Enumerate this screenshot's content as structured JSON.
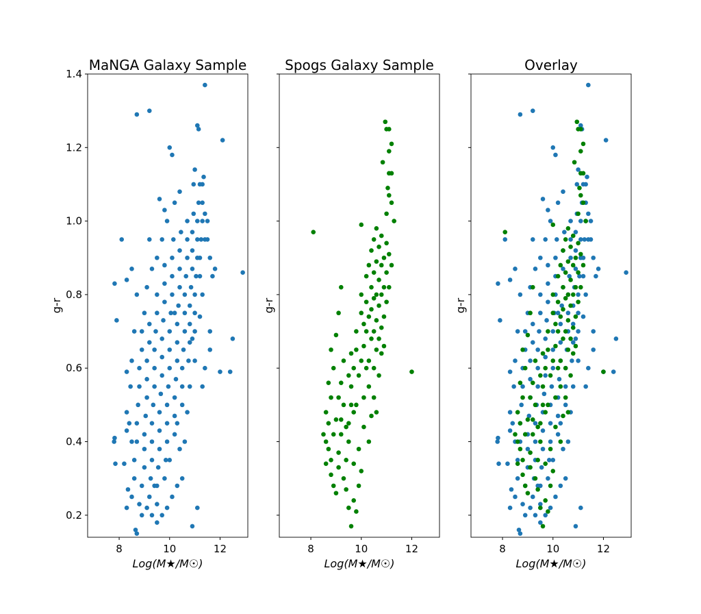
{
  "chart_data": [
    {
      "type": "scatter",
      "title": "MaNGA Galaxy Sample",
      "xlabel": "Log(M★/M☉)",
      "ylabel": "g-r",
      "xlim": [
        6.75,
        13.1
      ],
      "ylim": [
        0.14,
        1.4
      ],
      "xticks": [
        "8",
        "10",
        "12"
      ],
      "yticks": [
        "0.2",
        "0.4",
        "0.6",
        "0.8",
        "1.0",
        "1.2",
        "1.4"
      ],
      "show_ytick_labels": true,
      "series": [
        "manga"
      ]
    },
    {
      "type": "scatter",
      "title": "Spogs Galaxy Sample",
      "xlabel": "Log(M★/M☉)",
      "ylabel": "g-r",
      "xlim": [
        6.75,
        13.1
      ],
      "ylim": [
        0.14,
        1.4
      ],
      "xticks": [
        "8",
        "10",
        "12"
      ],
      "yticks": [
        "0.2",
        "0.4",
        "0.6",
        "0.8",
        "1.0",
        "1.2",
        "1.4"
      ],
      "show_ytick_labels": false,
      "series": [
        "spogs"
      ]
    },
    {
      "type": "scatter",
      "title": "Overlay",
      "xlabel": "Log(M★/M☉)",
      "ylabel": "g-r",
      "xlim": [
        6.75,
        13.1
      ],
      "ylim": [
        0.14,
        1.4
      ],
      "xticks": [
        "8",
        "10",
        "12"
      ],
      "yticks": [
        "0.2",
        "0.4",
        "0.6",
        "0.8",
        "1.0",
        "1.2",
        "1.4"
      ],
      "show_ytick_labels": false,
      "series": [
        "manga",
        "spogs"
      ]
    }
  ],
  "series_data": {
    "manga": {
      "color": "#1f77b4",
      "points": [
        [
          7.8,
          0.4
        ],
        [
          7.82,
          0.41
        ],
        [
          7.82,
          0.83
        ],
        [
          7.9,
          0.73
        ],
        [
          7.85,
          0.34
        ],
        [
          8.1,
          0.95
        ],
        [
          8.3,
          0.84
        ],
        [
          8.7,
          1.29
        ],
        [
          9.2,
          1.3
        ],
        [
          10.0,
          1.2
        ],
        [
          10.1,
          1.18
        ],
        [
          11.4,
          1.37
        ],
        [
          11.1,
          1.26
        ],
        [
          11.15,
          1.25
        ],
        [
          12.1,
          1.22
        ],
        [
          12.9,
          0.86
        ],
        [
          12.5,
          0.68
        ],
        [
          12.4,
          0.59
        ],
        [
          12.0,
          0.59
        ],
        [
          10.9,
          0.17
        ],
        [
          11.1,
          0.22
        ],
        [
          8.7,
          0.15
        ],
        [
          8.65,
          0.16
        ],
        [
          9.5,
          0.18
        ],
        [
          8.3,
          0.59
        ],
        [
          8.3,
          0.48
        ],
        [
          8.35,
          0.27
        ],
        [
          8.3,
          0.22
        ],
        [
          8.2,
          0.34
        ],
        [
          8.3,
          0.43
        ],
        [
          8.5,
          0.25
        ],
        [
          8.6,
          0.3
        ],
        [
          8.6,
          0.35
        ],
        [
          8.7,
          0.4
        ],
        [
          8.7,
          0.45
        ],
        [
          8.75,
          0.5
        ],
        [
          8.8,
          0.55
        ],
        [
          8.8,
          0.6
        ],
        [
          8.9,
          0.65
        ],
        [
          8.9,
          0.7
        ],
        [
          8.9,
          0.28
        ],
        [
          9.0,
          0.33
        ],
        [
          9.0,
          0.38
        ],
        [
          9.0,
          0.42
        ],
        [
          9.05,
          0.47
        ],
        [
          9.1,
          0.52
        ],
        [
          9.1,
          0.57
        ],
        [
          9.1,
          0.62
        ],
        [
          9.2,
          0.67
        ],
        [
          9.2,
          0.72
        ],
        [
          9.2,
          0.25
        ],
        [
          9.25,
          0.3
        ],
        [
          9.3,
          0.35
        ],
        [
          9.3,
          0.4
        ],
        [
          9.3,
          0.45
        ],
        [
          9.35,
          0.5
        ],
        [
          9.4,
          0.55
        ],
        [
          9.4,
          0.6
        ],
        [
          9.4,
          0.65
        ],
        [
          9.45,
          0.7
        ],
        [
          9.5,
          0.75
        ],
        [
          9.5,
          0.8
        ],
        [
          9.5,
          0.28
        ],
        [
          9.55,
          0.33
        ],
        [
          9.6,
          0.38
        ],
        [
          9.6,
          0.43
        ],
        [
          9.6,
          0.48
        ],
        [
          9.65,
          0.53
        ],
        [
          9.7,
          0.58
        ],
        [
          9.7,
          0.63
        ],
        [
          9.7,
          0.68
        ],
        [
          9.75,
          0.73
        ],
        [
          9.8,
          0.78
        ],
        [
          9.8,
          0.83
        ],
        [
          9.8,
          0.88
        ],
        [
          9.85,
          0.35
        ],
        [
          9.9,
          0.4
        ],
        [
          9.9,
          0.45
        ],
        [
          9.9,
          0.5
        ],
        [
          9.95,
          0.55
        ],
        [
          10.0,
          0.6
        ],
        [
          10.0,
          0.65
        ],
        [
          10.0,
          0.7
        ],
        [
          10.05,
          0.75
        ],
        [
          10.1,
          0.8
        ],
        [
          10.1,
          0.85
        ],
        [
          10.1,
          0.9
        ],
        [
          10.15,
          0.95
        ],
        [
          10.2,
          0.42
        ],
        [
          10.2,
          0.47
        ],
        [
          10.2,
          0.52
        ],
        [
          10.25,
          0.57
        ],
        [
          10.3,
          0.62
        ],
        [
          10.3,
          0.67
        ],
        [
          10.3,
          0.72
        ],
        [
          10.35,
          0.77
        ],
        [
          10.4,
          0.82
        ],
        [
          10.4,
          0.87
        ],
        [
          10.4,
          0.92
        ],
        [
          10.45,
          0.97
        ],
        [
          10.5,
          0.5
        ],
        [
          10.5,
          0.55
        ],
        [
          10.5,
          0.6
        ],
        [
          10.55,
          0.65
        ],
        [
          10.6,
          0.7
        ],
        [
          10.6,
          0.75
        ],
        [
          10.6,
          0.8
        ],
        [
          10.65,
          0.85
        ],
        [
          10.7,
          0.9
        ],
        [
          10.7,
          0.95
        ],
        [
          10.7,
          1.0
        ],
        [
          10.75,
          0.62
        ],
        [
          10.8,
          0.67
        ],
        [
          10.8,
          0.72
        ],
        [
          10.8,
          0.77
        ],
        [
          10.85,
          0.82
        ],
        [
          10.9,
          0.87
        ],
        [
          10.9,
          0.92
        ],
        [
          10.9,
          0.97
        ],
        [
          10.95,
          1.02
        ],
        [
          11.0,
          0.7
        ],
        [
          11.0,
          0.75
        ],
        [
          11.0,
          0.8
        ],
        [
          11.05,
          0.85
        ],
        [
          11.1,
          0.9
        ],
        [
          11.1,
          0.95
        ],
        [
          11.1,
          1.0
        ],
        [
          11.15,
          1.05
        ],
        [
          11.2,
          1.1
        ],
        [
          11.2,
          0.85
        ],
        [
          11.2,
          0.9
        ],
        [
          11.25,
          0.95
        ],
        [
          11.3,
          1.0
        ],
        [
          11.3,
          1.05
        ],
        [
          11.3,
          1.1
        ],
        [
          11.35,
          1.12
        ],
        [
          11.4,
          0.95
        ],
        [
          11.4,
          1.02
        ],
        [
          11.0,
          1.14
        ],
        [
          10.95,
          1.1
        ],
        [
          11.5,
          1.0
        ],
        [
          11.5,
          0.95
        ],
        [
          11.6,
          0.9
        ],
        [
          11.7,
          0.85
        ],
        [
          11.8,
          0.87
        ],
        [
          11.6,
          0.7
        ],
        [
          11.4,
          0.6
        ],
        [
          11.6,
          0.65
        ],
        [
          11.3,
          0.55
        ],
        [
          10.6,
          0.4
        ],
        [
          10.5,
          0.3
        ],
        [
          10.3,
          0.28
        ],
        [
          10.1,
          0.25
        ],
        [
          9.9,
          0.22
        ],
        [
          9.7,
          0.2
        ],
        [
          9.5,
          0.23
        ],
        [
          9.3,
          0.2
        ],
        [
          9.1,
          0.22
        ],
        [
          8.9,
          0.2
        ],
        [
          8.8,
          0.23
        ],
        [
          9.0,
          0.75
        ],
        [
          9.1,
          0.82
        ],
        [
          9.3,
          0.87
        ],
        [
          9.5,
          0.9
        ],
        [
          9.7,
          0.95
        ],
        [
          9.9,
          1.0
        ],
        [
          10.2,
          1.05
        ],
        [
          10.4,
          1.08
        ],
        [
          9.6,
          1.06
        ],
        [
          9.8,
          1.03
        ],
        [
          8.5,
          0.87
        ],
        [
          8.7,
          0.8
        ],
        [
          8.6,
          0.7
        ],
        [
          8.5,
          0.62
        ],
        [
          8.45,
          0.55
        ],
        [
          8.5,
          0.4
        ],
        [
          8.4,
          0.45
        ],
        [
          9.2,
          0.95
        ],
        [
          10.0,
          0.35
        ],
        [
          10.3,
          0.45
        ],
        [
          10.8,
          0.55
        ],
        [
          11.0,
          0.62
        ],
        [
          10.4,
          0.38
        ],
        [
          9.4,
          0.28
        ],
        [
          9.8,
          0.3
        ],
        [
          10.7,
          0.48
        ],
        [
          11.2,
          0.74
        ],
        [
          11.3,
          0.8
        ],
        [
          10.9,
          0.68
        ],
        [
          10.2,
          0.75
        ]
      ]
    },
    "spogs": {
      "color": "#008000",
      "points": [
        [
          8.1,
          0.97
        ],
        [
          12.0,
          0.59
        ],
        [
          10.95,
          1.27
        ],
        [
          11.0,
          1.25
        ],
        [
          11.1,
          1.25
        ],
        [
          11.2,
          1.21
        ],
        [
          11.1,
          1.19
        ],
        [
          10.85,
          1.16
        ],
        [
          11.2,
          1.13
        ],
        [
          11.1,
          1.13
        ],
        [
          11.05,
          1.09
        ],
        [
          11.1,
          1.07
        ],
        [
          11.2,
          1.05
        ],
        [
          11.0,
          1.02
        ],
        [
          11.3,
          1.0
        ],
        [
          10.0,
          0.99
        ],
        [
          9.2,
          0.82
        ],
        [
          9.1,
          0.75
        ],
        [
          9.0,
          0.69
        ],
        [
          8.8,
          0.65
        ],
        [
          8.9,
          0.6
        ],
        [
          8.7,
          0.56
        ],
        [
          8.8,
          0.52
        ],
        [
          8.6,
          0.48
        ],
        [
          8.7,
          0.45
        ],
        [
          8.5,
          0.42
        ],
        [
          8.6,
          0.4
        ],
        [
          8.7,
          0.38
        ],
        [
          8.8,
          0.35
        ],
        [
          8.8,
          0.31
        ],
        [
          8.9,
          0.28
        ],
        [
          9.0,
          0.26
        ],
        [
          9.1,
          0.33
        ],
        [
          9.1,
          0.37
        ],
        [
          9.2,
          0.42
        ],
        [
          9.2,
          0.46
        ],
        [
          9.3,
          0.5
        ],
        [
          9.3,
          0.3
        ],
        [
          9.4,
          0.27
        ],
        [
          9.4,
          0.35
        ],
        [
          9.5,
          0.22
        ],
        [
          9.5,
          0.4
        ],
        [
          9.5,
          0.45
        ],
        [
          9.6,
          0.17
        ],
        [
          9.6,
          0.5
        ],
        [
          9.6,
          0.55
        ],
        [
          9.7,
          0.6
        ],
        [
          9.7,
          0.48
        ],
        [
          9.8,
          0.21
        ],
        [
          9.8,
          0.65
        ],
        [
          9.8,
          0.7
        ],
        [
          9.9,
          0.38
        ],
        [
          9.9,
          0.58
        ],
        [
          10.0,
          0.62
        ],
        [
          10.0,
          0.75
        ],
        [
          10.0,
          0.8
        ],
        [
          10.1,
          0.52
        ],
        [
          10.1,
          0.66
        ],
        [
          10.1,
          0.72
        ],
        [
          10.2,
          0.7
        ],
        [
          10.2,
          0.78
        ],
        [
          10.2,
          0.85
        ],
        [
          10.3,
          0.55
        ],
        [
          10.3,
          0.62
        ],
        [
          10.3,
          0.74
        ],
        [
          10.3,
          0.88
        ],
        [
          10.4,
          0.68
        ],
        [
          10.4,
          0.76
        ],
        [
          10.4,
          0.82
        ],
        [
          10.4,
          0.92
        ],
        [
          10.5,
          0.6
        ],
        [
          10.5,
          0.7
        ],
        [
          10.5,
          0.79
        ],
        [
          10.5,
          0.86
        ],
        [
          10.5,
          0.95
        ],
        [
          10.6,
          0.65
        ],
        [
          10.6,
          0.73
        ],
        [
          10.6,
          0.8
        ],
        [
          10.6,
          0.89
        ],
        [
          10.7,
          0.58
        ],
        [
          10.7,
          0.68
        ],
        [
          10.7,
          0.77
        ],
        [
          10.7,
          0.84
        ],
        [
          10.7,
          0.93
        ],
        [
          10.8,
          0.71
        ],
        [
          10.8,
          0.8
        ],
        [
          10.8,
          0.88
        ],
        [
          10.8,
          0.96
        ],
        [
          10.9,
          0.74
        ],
        [
          10.9,
          0.82
        ],
        [
          10.9,
          0.9
        ],
        [
          11.0,
          0.78
        ],
        [
          11.0,
          0.86
        ],
        [
          11.0,
          0.94
        ],
        [
          11.1,
          0.82
        ],
        [
          11.1,
          0.91
        ],
        [
          10.6,
          0.98
        ],
        [
          10.4,
          0.47
        ],
        [
          10.3,
          0.4
        ],
        [
          10.1,
          0.44
        ],
        [
          10.0,
          0.32
        ],
        [
          9.9,
          0.28
        ],
        [
          9.7,
          0.34
        ],
        [
          9.4,
          0.44
        ],
        [
          9.2,
          0.56
        ],
        [
          9.0,
          0.46
        ],
        [
          8.9,
          0.42
        ],
        [
          9.6,
          0.64
        ],
        [
          9.8,
          0.5
        ],
        [
          10.2,
          0.6
        ],
        [
          10.6,
          0.48
        ],
        [
          10.8,
          0.64
        ],
        [
          9.3,
          0.62
        ],
        [
          9.5,
          0.58
        ],
        [
          9.1,
          0.52
        ],
        [
          8.6,
          0.34
        ],
        [
          9.7,
          0.24
        ],
        [
          10.5,
          0.52
        ],
        [
          10.9,
          0.66
        ],
        [
          11.2,
          0.88
        ]
      ]
    }
  }
}
